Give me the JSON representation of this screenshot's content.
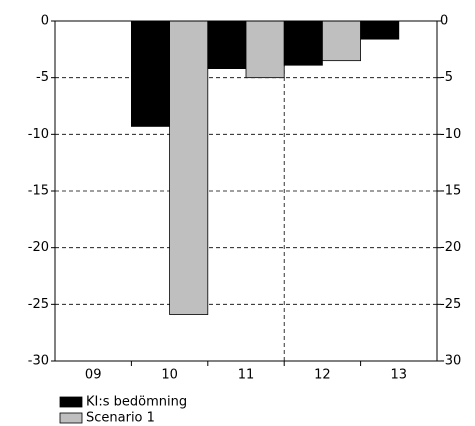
{
  "chart_data": {
    "type": "bar",
    "categories": [
      "09",
      "10",
      "11",
      "12",
      "13"
    ],
    "series": [
      {
        "name": "KI:s bedömning",
        "color": "#000000",
        "values": [
          null,
          -9.3,
          -4.2,
          -3.9,
          -1.6
        ]
      },
      {
        "name": "Scenario 1",
        "color": "#bfbfbf",
        "values": [
          null,
          -25.9,
          -5.0,
          -3.5,
          null
        ]
      }
    ],
    "ylim": [
      -30,
      0
    ],
    "yticks": [
      0,
      -5,
      -10,
      -15,
      -20,
      -25,
      -30
    ],
    "y2lim": [
      -30,
      0
    ],
    "y2ticks": [
      0,
      -5,
      -10,
      -15,
      -20,
      -25,
      -30
    ],
    "grid": true
  }
}
